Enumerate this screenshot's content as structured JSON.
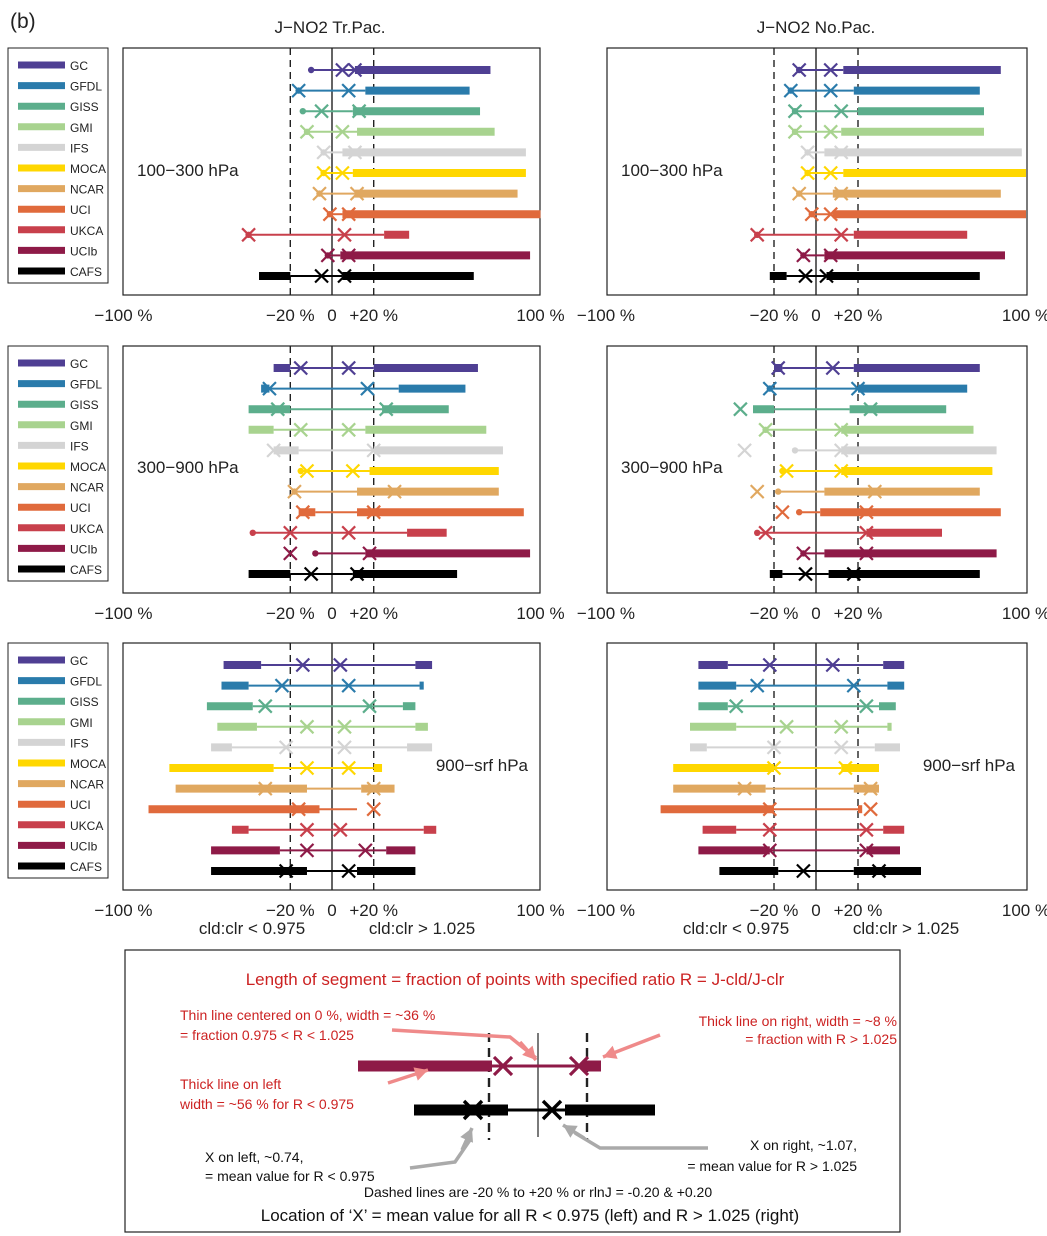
{
  "figure_label": "(b)",
  "colors": {
    "GC": "#4f3f93",
    "GFDL": "#2a7bab",
    "GISS": "#5cae8c",
    "GMI": "#a8d38f",
    "IFS": "#d4d4d4",
    "MOCA": "#ffd700",
    "NCAR": "#e0a860",
    "UCI": "#e06a3c",
    "UKCA": "#c8404c",
    "UCIb": "#8e1a47",
    "CAFS": "#000000",
    "annotation": "#cc2222",
    "arrow_pink": "#ef8a8a",
    "arrow_gray": "#aaaaaa"
  },
  "models": [
    "GC",
    "GFDL",
    "GISS",
    "GMI",
    "IFS",
    "MOCA",
    "NCAR",
    "UCI",
    "UKCA",
    "UCIb",
    "CAFS"
  ],
  "columns": [
    {
      "title": "J−NO2  Tr.Pac."
    },
    {
      "title": "J−NO2  No.Pac."
    }
  ],
  "axis": {
    "ticks": [
      {
        "v": -100,
        "label": "−100 %"
      },
      {
        "v": -20,
        "label": "−20 %"
      },
      {
        "v": 0,
        "label": "0"
      },
      {
        "v": 20,
        "label": "+20 %"
      },
      {
        "v": 100,
        "label": "100 %"
      }
    ],
    "xlim": [
      -100,
      100
    ],
    "dashed_at": [
      -20,
      20
    ],
    "bottom_left_label": "cld:clr < 0.975",
    "bottom_right_label": "cld:clr > 1.025"
  },
  "row_labels": [
    "100−300 hPa",
    "300−900 hPa",
    "900−srf hPa"
  ],
  "legend_title": "",
  "key": {
    "title": "Length of segment = fraction of points with specified ratio R = J-cld/J-clr",
    "thin_note_1": "Thin line centered on 0 %, width = ~36 %",
    "thin_note_2": "= fraction 0.975 < R < 1.025",
    "right_note_1": "Thick line on right, width = ~8 %",
    "right_note_2": "= fraction with R > 1.025",
    "left_note_1": "Thick line on left",
    "left_note_2": "width = ~56 % for R < 0.975",
    "xleft_note_1": "X on left, ~0.74,",
    "xleft_note_2": "= mean value for R < 0.975",
    "xright_note_1": "X on right, ~1.07,",
    "xright_note_2": "= mean value for R > 1.025",
    "dashed_note": "Dashed lines are -20 % to +20 % or rlnJ = -0.20 & +0.20",
    "bottom_note": "Location of ‘X’ = mean value for all R < 0.975 (left) and R > 1.025 (right)"
  },
  "chart_data": [
    {
      "type": "segment-summary",
      "title": "J−NO2  Tr.Pac.",
      "row": "100−300 hPa",
      "note": "each model: [left_end %, thin_start %, thin_end %, right_end %, X_left %, X_right %]",
      "models": {
        "GC": [
          -10,
          -10,
          11,
          76,
          5,
          11
        ],
        "GFDL": [
          -16,
          -16,
          16,
          66,
          -16,
          8
        ],
        "GISS": [
          -14,
          -14,
          10,
          71,
          -5,
          13
        ],
        "GMI": [
          -12,
          -12,
          12,
          78,
          -12,
          5
        ],
        "IFS": [
          -4,
          -4,
          5,
          93,
          -4,
          11
        ],
        "MOCA": [
          -4,
          -4,
          10,
          93,
          -4,
          5
        ],
        "NCAR": [
          -6,
          -6,
          11,
          89,
          -6,
          12
        ],
        "UCI": [
          -1,
          -1,
          5,
          100,
          -1,
          8
        ],
        "UKCA": [
          -40,
          -40,
          25,
          37,
          -40,
          6
        ],
        "UCIb": [
          -2,
          -2,
          4,
          95,
          -2,
          8
        ],
        "CAFS": [
          -35,
          -20,
          5,
          68,
          -5,
          6
        ]
      }
    },
    {
      "type": "segment-summary",
      "title": "J−NO2  No.Pac.",
      "row": "100−300 hPa",
      "models": {
        "GC": [
          -8,
          -8,
          13,
          88,
          -8,
          7
        ],
        "GFDL": [
          -12,
          -12,
          18,
          78,
          -12,
          7
        ],
        "GISS": [
          -10,
          -10,
          20,
          80,
          -10,
          12
        ],
        "GMI": [
          -10,
          -10,
          12,
          80,
          -10,
          7
        ],
        "IFS": [
          -4,
          -4,
          4,
          98,
          -4,
          12
        ],
        "MOCA": [
          -4,
          -4,
          13,
          100,
          -4,
          7
        ],
        "NCAR": [
          -8,
          -8,
          8,
          88,
          -8,
          12
        ],
        "UCI": [
          -2,
          -2,
          8,
          100,
          -2,
          7
        ],
        "UKCA": [
          -28,
          -28,
          18,
          72,
          -28,
          12
        ],
        "UCIb": [
          -6,
          -6,
          4,
          90,
          -6,
          7
        ],
        "CAFS": [
          -22,
          -14,
          5,
          78,
          -5,
          5
        ]
      }
    },
    {
      "type": "segment-summary",
      "title": "J−NO2  Tr.Pac.",
      "row": "300−900 hPa",
      "models": {
        "GC": [
          -28,
          -20,
          20,
          70,
          -15,
          8
        ],
        "GFDL": [
          -34,
          -30,
          32,
          64,
          -30,
          17
        ],
        "GISS": [
          -40,
          -20,
          24,
          56,
          -26,
          26
        ],
        "GMI": [
          -40,
          -28,
          16,
          74,
          -15,
          8
        ],
        "IFS": [
          -28,
          -16,
          20,
          82,
          -28,
          20
        ],
        "MOCA": [
          -15,
          -15,
          18,
          80,
          -12,
          10
        ],
        "NCAR": [
          -18,
          -18,
          12,
          80,
          -18,
          30
        ],
        "UCI": [
          -16,
          -8,
          12,
          92,
          -14,
          20
        ],
        "UKCA": [
          -38,
          -38,
          36,
          55,
          -20,
          8
        ],
        "UCIb": [
          -8,
          -8,
          16,
          95,
          -20,
          18
        ],
        "CAFS": [
          -40,
          -20,
          10,
          60,
          -10,
          12
        ]
      }
    },
    {
      "type": "segment-summary",
      "title": "J−NO2  No.Pac.",
      "row": "300−900 hPa",
      "models": {
        "GC": [
          -20,
          -16,
          18,
          78,
          -18,
          8
        ],
        "GFDL": [
          -22,
          -22,
          20,
          72,
          -22,
          20
        ],
        "GISS": [
          -30,
          -20,
          16,
          62,
          -36,
          26
        ],
        "GMI": [
          -24,
          -24,
          12,
          75,
          -24,
          12
        ],
        "IFS": [
          -10,
          -10,
          12,
          86,
          -34,
          12
        ],
        "MOCA": [
          -16,
          -16,
          12,
          84,
          -14,
          12
        ],
        "NCAR": [
          -18,
          -18,
          4,
          78,
          -28,
          28
        ],
        "UCI": [
          -8,
          -8,
          2,
          88,
          -16,
          24
        ],
        "UKCA": [
          -28,
          -28,
          24,
          60,
          -24,
          24
        ],
        "UCIb": [
          -6,
          -6,
          4,
          86,
          -6,
          24
        ],
        "CAFS": [
          -22,
          -16,
          6,
          78,
          -5,
          18
        ]
      }
    },
    {
      "type": "segment-summary",
      "title": "J−NO2  Tr.Pac.",
      "row": "900−srf hPa",
      "models": {
        "GC": [
          -52,
          -34,
          40,
          48,
          -14,
          4
        ],
        "GFDL": [
          -53,
          -40,
          42,
          44,
          -24,
          8
        ],
        "GISS": [
          -60,
          -38,
          34,
          40,
          -32,
          18
        ],
        "GMI": [
          -55,
          -36,
          40,
          46,
          -12,
          6
        ],
        "IFS": [
          -58,
          -48,
          36,
          48,
          -22,
          6
        ],
        "MOCA": [
          -78,
          -28,
          20,
          24,
          -12,
          8
        ],
        "NCAR": [
          -75,
          -12,
          14,
          30,
          -32,
          20
        ],
        "UCI": [
          -88,
          -6,
          12,
          12,
          -16,
          20
        ],
        "UKCA": [
          -48,
          -40,
          44,
          50,
          -12,
          4
        ],
        "UCIb": [
          -58,
          -25,
          26,
          40,
          -12,
          16
        ],
        "CAFS": [
          -58,
          -12,
          12,
          40,
          -22,
          8
        ]
      }
    },
    {
      "type": "segment-summary",
      "title": "J−NO2  No.Pac.",
      "row": "900−srf hPa",
      "models": {
        "GC": [
          -56,
          -42,
          32,
          42,
          -22,
          8
        ],
        "GFDL": [
          -56,
          -38,
          34,
          42,
          -28,
          18
        ],
        "GISS": [
          -56,
          -42,
          30,
          38,
          -38,
          24
        ],
        "GMI": [
          -60,
          -38,
          34,
          36,
          -14,
          12
        ],
        "IFS": [
          -60,
          -52,
          28,
          40,
          -20,
          12
        ],
        "MOCA": [
          -68,
          -20,
          12,
          30,
          -20,
          14
        ],
        "NCAR": [
          -68,
          -24,
          18,
          30,
          -34,
          26
        ],
        "UCI": [
          -74,
          -20,
          20,
          22,
          -22,
          26
        ],
        "UKCA": [
          -54,
          -38,
          32,
          42,
          -22,
          24
        ],
        "UCIb": [
          -56,
          -22,
          24,
          40,
          -22,
          24
        ],
        "CAFS": [
          -46,
          -18,
          18,
          50,
          -6,
          30
        ]
      }
    }
  ]
}
